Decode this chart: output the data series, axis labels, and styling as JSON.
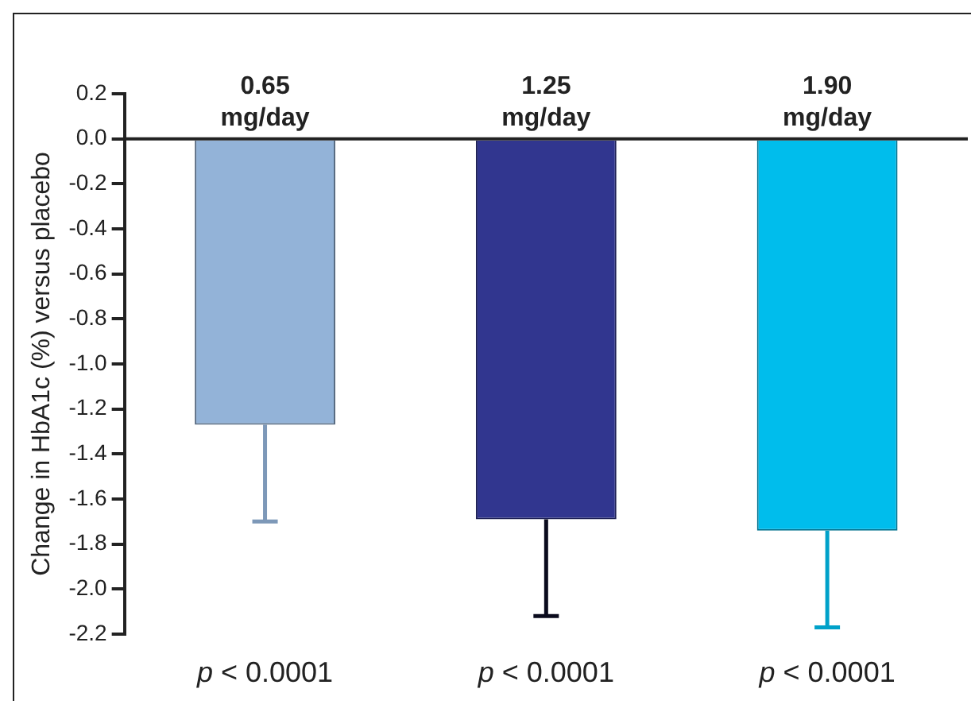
{
  "chart_data": {
    "type": "bar",
    "ylabel": "Change in HbA1c (%) versus placebo",
    "categories": [
      "0.65 mg/day",
      "1.25 mg/day",
      "1.90 mg/day"
    ],
    "values": [
      -1.27,
      -1.69,
      -1.74
    ],
    "colors": [
      "#93b3d8",
      "#31368f",
      "#00bdec"
    ],
    "errors": [
      [
        -1.7,
        -1.27
      ],
      [
        -2.12,
        -1.69
      ],
      [
        -2.17,
        -1.74
      ]
    ],
    "ylim": [
      -2.2,
      0.2
    ],
    "yticks": [
      {
        "value": 0.2,
        "label": "0.2"
      },
      {
        "value": 0,
        "label": "0.0"
      },
      {
        "value": -0.2,
        "label": "-0.2"
      },
      {
        "value": -0.4,
        "label": "-0.4"
      },
      {
        "value": -0.6,
        "label": "-0.6"
      },
      {
        "value": -0.8,
        "label": "-0.8"
      },
      {
        "value": -1,
        "label": "-1.0"
      },
      {
        "value": -1.2,
        "label": "-1.2"
      },
      {
        "value": -1.4,
        "label": "-1.4"
      },
      {
        "value": -1.6,
        "label": "-1.6"
      },
      {
        "value": -1.8,
        "label": "-1.8"
      },
      {
        "value": -2,
        "label": "-2.0"
      },
      {
        "value": -2.2,
        "label": "-2.2"
      }
    ],
    "annotations": [
      "p < 0.0001",
      "p < 0.0001",
      "p < 0.0001"
    ],
    "grid": false,
    "legend": false
  }
}
